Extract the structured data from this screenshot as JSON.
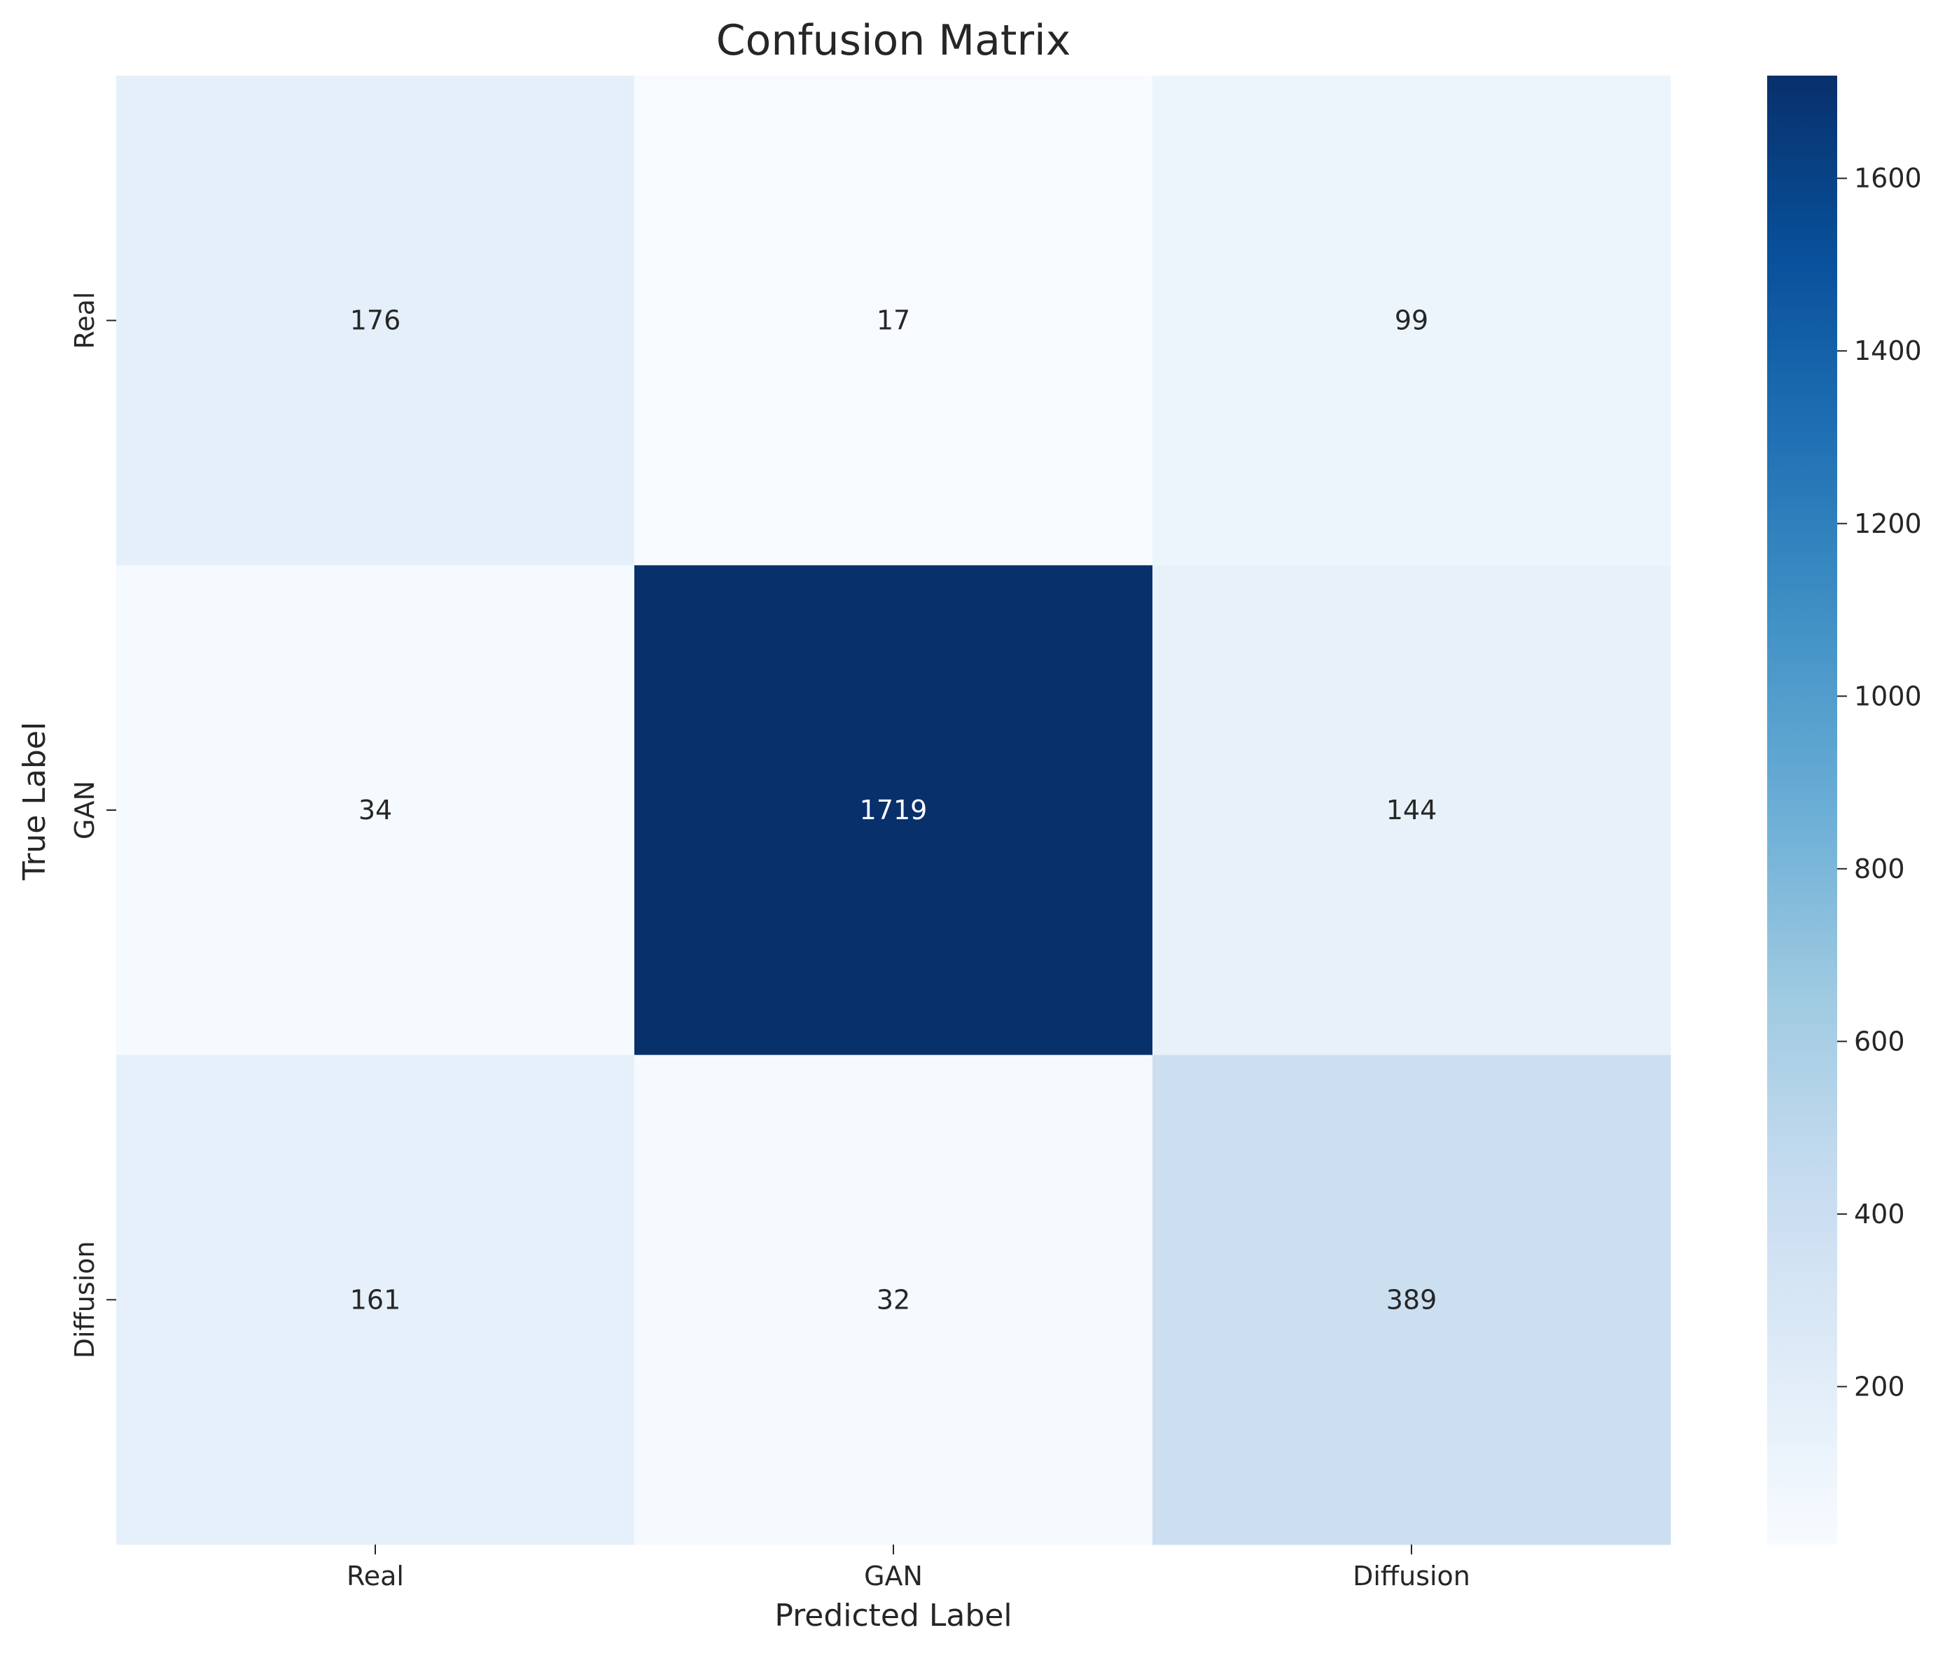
{
  "chart_data": {
    "type": "heatmap",
    "title": "Confusion Matrix",
    "xlabel": "Predicted Label",
    "ylabel": "True Label",
    "x_categories": [
      "Real",
      "GAN",
      "Diffusion"
    ],
    "y_categories": [
      "Real",
      "GAN",
      "Diffusion"
    ],
    "values": [
      [
        176,
        17,
        99
      ],
      [
        34,
        1719,
        144
      ],
      [
        161,
        32,
        389
      ]
    ],
    "colormap": "Blues",
    "colormap_stops": [
      "#f7fbff",
      "#deebf7",
      "#c6dbef",
      "#9ecae1",
      "#6baed6",
      "#4292c6",
      "#2171b5",
      "#08519c",
      "#08306b"
    ],
    "color_range": [
      17,
      1719
    ],
    "colorbar": {
      "ticks": [
        200,
        400,
        600,
        800,
        1000,
        1200,
        1400,
        1600
      ]
    },
    "annotation_colors": {
      "dark": "#262626",
      "light": "#ffffff"
    }
  }
}
